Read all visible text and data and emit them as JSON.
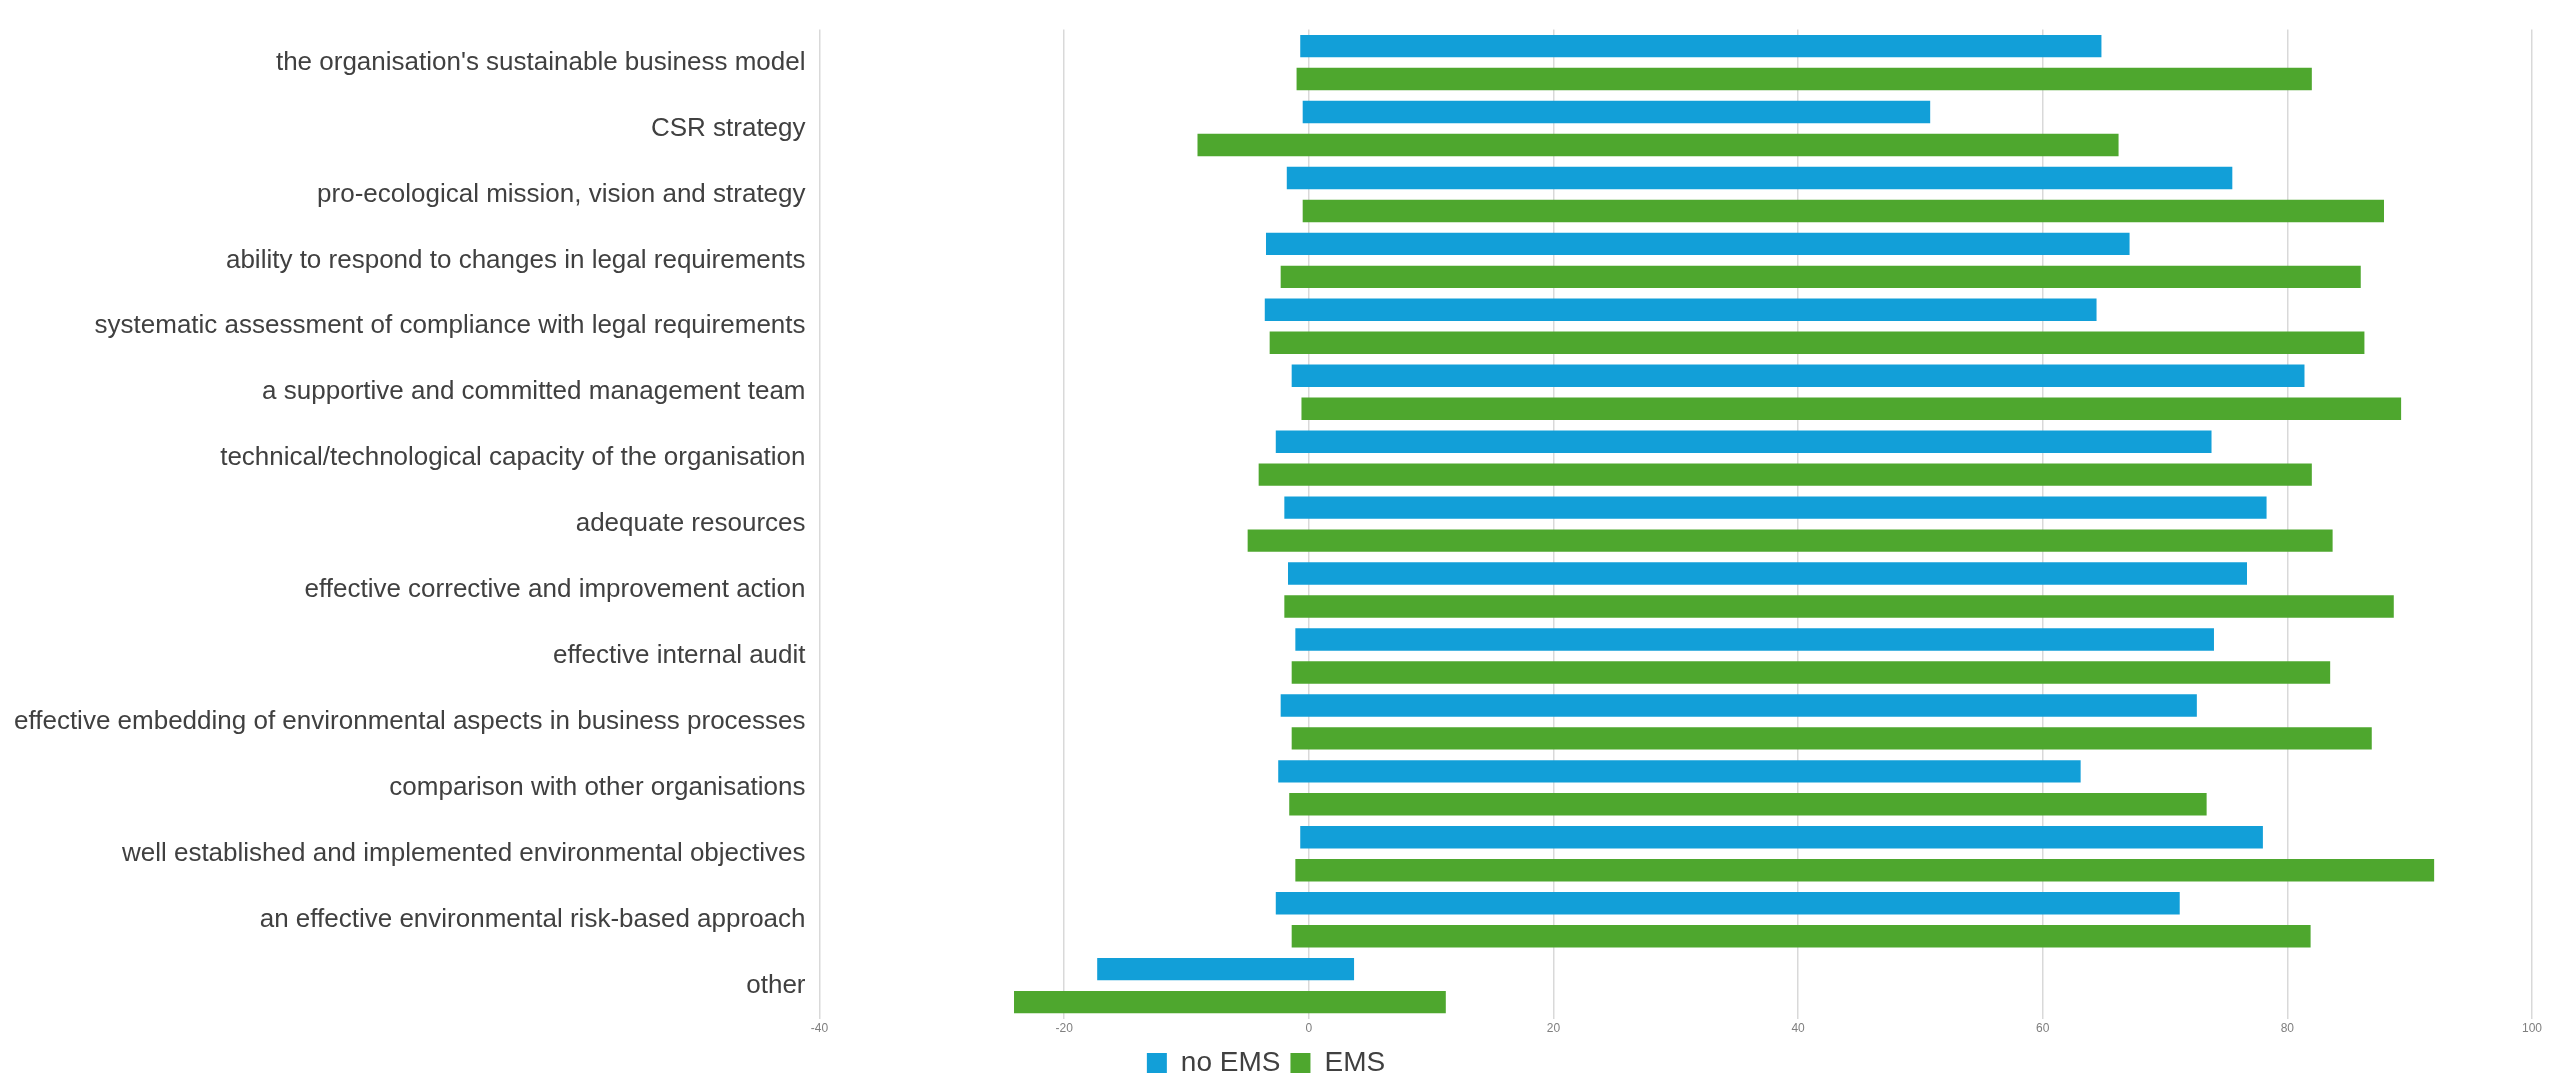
{
  "chart_data": {
    "type": "bar",
    "orientation": "horizontal",
    "categories": [
      "the organisation's sustainable business model",
      "CSR strategy",
      "pro-ecological mission, vision and strategy",
      "ability to respond to changes in legal requirements",
      "systematic assessment of compliance with legal requirements",
      "a supportive and committed management team",
      "technical/technological capacity of the organisation",
      "adequate resources",
      "effective corrective and improvement action",
      "effective internal audit",
      "effective embedding of environmental aspects in business processes",
      "comparison with other organisations",
      "well established and implemented environmental objectives",
      "an effective environmental risk-based approach",
      "other"
    ],
    "series": [
      {
        "name": "no EMS",
        "color": "#129fd8",
        "base": [
          -0.7,
          -0.5,
          -1.8,
          -3.5,
          -3.6,
          -1.4,
          -2.7,
          -2.0,
          -1.7,
          -1.1,
          -2.3,
          -2.5,
          -0.7,
          -2.7,
          -17.3
        ],
        "values": [
          65.5,
          51.3,
          77.3,
          70.6,
          68.0,
          82.8,
          76.5,
          80.3,
          78.4,
          75.1,
          74.9,
          65.6,
          78.7,
          73.9,
          21.0
        ]
      },
      {
        "name": "EMS",
        "color": "#4ea72e",
        "base": [
          -1.0,
          -9.1,
          -0.5,
          -2.3,
          -3.2,
          -0.6,
          -4.1,
          -5.0,
          -2.0,
          -1.4,
          -1.4,
          -1.6,
          -1.1,
          -1.4,
          -24.1
        ],
        "values": [
          83.0,
          75.3,
          88.4,
          88.3,
          89.5,
          89.9,
          86.1,
          88.7,
          90.7,
          84.9,
          88.3,
          75.0,
          93.1,
          83.3,
          35.3
        ]
      }
    ],
    "xlim": [
      -40,
      100
    ],
    "xticks": [
      -40,
      -20,
      0,
      20,
      40,
      60,
      80,
      100
    ],
    "grid": "x",
    "legend": "bottom"
  }
}
